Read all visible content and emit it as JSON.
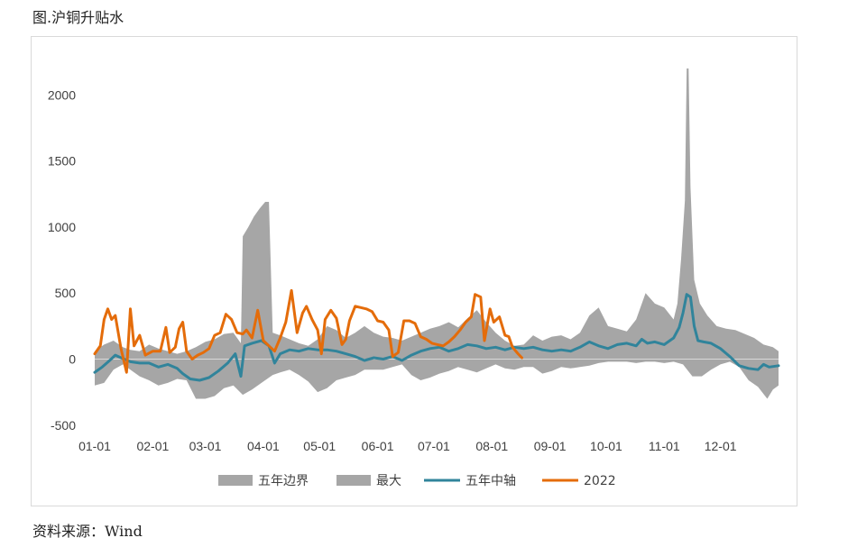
{
  "figure_title": "图.沪铜升贴水",
  "source_text": "资料来源：Wind",
  "chart_data": {
    "type": "area",
    "ylim": [
      -500,
      2200
    ],
    "y_ticks": [
      -500,
      0,
      500,
      1000,
      1500,
      2000
    ],
    "x_range": [
      1,
      366
    ],
    "x_ticks": [
      {
        "label": "01-01",
        "day": 1
      },
      {
        "label": "02-01",
        "day": 32
      },
      {
        "label": "03-01",
        "day": 60
      },
      {
        "label": "04-01",
        "day": 91
      },
      {
        "label": "05-01",
        "day": 121
      },
      {
        "label": "06-01",
        "day": 152
      },
      {
        "label": "07-01",
        "day": 182
      },
      {
        "label": "08-01",
        "day": 213
      },
      {
        "label": "09-01",
        "day": 244
      },
      {
        "label": "10-01",
        "day": 274
      },
      {
        "label": "11-01",
        "day": 305
      },
      {
        "label": "12-01",
        "day": 335
      }
    ],
    "legend": [
      "五年边界",
      "最大",
      "五年中轴",
      "2022"
    ],
    "colors": {
      "band": "#a6a6a6",
      "midline": "#31849b",
      "y2022": "#e46c0a"
    },
    "series": {
      "band_upper": [
        [
          1,
          60
        ],
        [
          6,
          110
        ],
        [
          11,
          140
        ],
        [
          16,
          90
        ],
        [
          20,
          70
        ],
        [
          25,
          60
        ],
        [
          30,
          110
        ],
        [
          35,
          80
        ],
        [
          40,
          60
        ],
        [
          45,
          40
        ],
        [
          50,
          60
        ],
        [
          55,
          90
        ],
        [
          60,
          130
        ],
        [
          65,
          150
        ],
        [
          70,
          190
        ],
        [
          75,
          200
        ],
        [
          79,
          120
        ],
        [
          80,
          930
        ],
        [
          83,
          1000
        ],
        [
          86,
          1080
        ],
        [
          89,
          1140
        ],
        [
          92,
          1190
        ],
        [
          94,
          1190
        ],
        [
          96,
          200
        ],
        [
          100,
          180
        ],
        [
          105,
          150
        ],
        [
          110,
          120
        ],
        [
          115,
          100
        ],
        [
          120,
          150
        ],
        [
          125,
          250
        ],
        [
          130,
          220
        ],
        [
          135,
          160
        ],
        [
          140,
          200
        ],
        [
          145,
          250
        ],
        [
          150,
          200
        ],
        [
          155,
          170
        ],
        [
          160,
          160
        ],
        [
          165,
          140
        ],
        [
          170,
          170
        ],
        [
          175,
          200
        ],
        [
          180,
          230
        ],
        [
          185,
          250
        ],
        [
          190,
          280
        ],
        [
          195,
          240
        ],
        [
          200,
          310
        ],
        [
          205,
          370
        ],
        [
          210,
          280
        ],
        [
          215,
          200
        ],
        [
          220,
          140
        ],
        [
          225,
          100
        ],
        [
          230,
          110
        ],
        [
          235,
          180
        ],
        [
          240,
          140
        ],
        [
          245,
          170
        ],
        [
          250,
          180
        ],
        [
          255,
          150
        ],
        [
          260,
          200
        ],
        [
          265,
          330
        ],
        [
          270,
          390
        ],
        [
          275,
          250
        ],
        [
          280,
          230
        ],
        [
          285,
          210
        ],
        [
          290,
          300
        ],
        [
          295,
          500
        ],
        [
          300,
          420
        ],
        [
          305,
          390
        ],
        [
          310,
          300
        ],
        [
          312,
          420
        ],
        [
          314,
          760
        ],
        [
          316,
          1200
        ],
        [
          317,
          2200
        ],
        [
          318,
          2200
        ],
        [
          319,
          1300
        ],
        [
          321,
          600
        ],
        [
          324,
          420
        ],
        [
          328,
          330
        ],
        [
          333,
          250
        ],
        [
          338,
          230
        ],
        [
          343,
          220
        ],
        [
          348,
          190
        ],
        [
          353,
          160
        ],
        [
          358,
          110
        ],
        [
          363,
          90
        ],
        [
          366,
          60
        ]
      ],
      "band_lower": [
        [
          1,
          -200
        ],
        [
          6,
          -180
        ],
        [
          11,
          -80
        ],
        [
          16,
          -40
        ],
        [
          20,
          -80
        ],
        [
          25,
          -130
        ],
        [
          30,
          -160
        ],
        [
          35,
          -200
        ],
        [
          40,
          -180
        ],
        [
          45,
          -150
        ],
        [
          50,
          -160
        ],
        [
          55,
          -300
        ],
        [
          60,
          -300
        ],
        [
          65,
          -280
        ],
        [
          70,
          -220
        ],
        [
          75,
          -200
        ],
        [
          80,
          -270
        ],
        [
          85,
          -230
        ],
        [
          90,
          -180
        ],
        [
          96,
          -120
        ],
        [
          100,
          -100
        ],
        [
          105,
          -80
        ],
        [
          110,
          -120
        ],
        [
          115,
          -170
        ],
        [
          120,
          -250
        ],
        [
          125,
          -220
        ],
        [
          130,
          -160
        ],
        [
          135,
          -140
        ],
        [
          140,
          -120
        ],
        [
          145,
          -80
        ],
        [
          150,
          -80
        ],
        [
          155,
          -80
        ],
        [
          160,
          -60
        ],
        [
          165,
          -40
        ],
        [
          170,
          -120
        ],
        [
          175,
          -160
        ],
        [
          180,
          -140
        ],
        [
          185,
          -110
        ],
        [
          190,
          -90
        ],
        [
          195,
          -60
        ],
        [
          200,
          -80
        ],
        [
          205,
          -100
        ],
        [
          210,
          -70
        ],
        [
          215,
          -40
        ],
        [
          220,
          -70
        ],
        [
          225,
          -80
        ],
        [
          230,
          -60
        ],
        [
          235,
          -60
        ],
        [
          240,
          -110
        ],
        [
          245,
          -90
        ],
        [
          250,
          -60
        ],
        [
          255,
          -70
        ],
        [
          260,
          -60
        ],
        [
          265,
          -50
        ],
        [
          270,
          -30
        ],
        [
          275,
          -20
        ],
        [
          280,
          -20
        ],
        [
          285,
          -20
        ],
        [
          290,
          -30
        ],
        [
          295,
          -20
        ],
        [
          300,
          -20
        ],
        [
          305,
          -30
        ],
        [
          310,
          -20
        ],
        [
          315,
          -40
        ],
        [
          320,
          -130
        ],
        [
          325,
          -130
        ],
        [
          330,
          -80
        ],
        [
          335,
          -40
        ],
        [
          340,
          -20
        ],
        [
          345,
          -60
        ],
        [
          350,
          -160
        ],
        [
          355,
          -210
        ],
        [
          360,
          -300
        ],
        [
          363,
          -230
        ],
        [
          366,
          -200
        ]
      ],
      "midline": [
        [
          1,
          -100
        ],
        [
          5,
          -60
        ],
        [
          9,
          -10
        ],
        [
          12,
          30
        ],
        [
          15,
          10
        ],
        [
          20,
          -20
        ],
        [
          25,
          -30
        ],
        [
          30,
          -30
        ],
        [
          35,
          -60
        ],
        [
          40,
          -40
        ],
        [
          45,
          -70
        ],
        [
          48,
          -110
        ],
        [
          52,
          -150
        ],
        [
          57,
          -160
        ],
        [
          62,
          -140
        ],
        [
          67,
          -90
        ],
        [
          72,
          -30
        ],
        [
          76,
          40
        ],
        [
          79,
          -130
        ],
        [
          81,
          100
        ],
        [
          85,
          120
        ],
        [
          90,
          140
        ],
        [
          94,
          100
        ],
        [
          97,
          -30
        ],
        [
          100,
          40
        ],
        [
          105,
          70
        ],
        [
          110,
          60
        ],
        [
          115,
          80
        ],
        [
          120,
          70
        ],
        [
          125,
          70
        ],
        [
          130,
          60
        ],
        [
          135,
          40
        ],
        [
          140,
          20
        ],
        [
          145,
          -10
        ],
        [
          150,
          10
        ],
        [
          155,
          0
        ],
        [
          160,
          20
        ],
        [
          165,
          -10
        ],
        [
          170,
          30
        ],
        [
          175,
          60
        ],
        [
          180,
          80
        ],
        [
          185,
          90
        ],
        [
          190,
          60
        ],
        [
          195,
          80
        ],
        [
          200,
          110
        ],
        [
          205,
          100
        ],
        [
          210,
          80
        ],
        [
          215,
          90
        ],
        [
          220,
          70
        ],
        [
          225,
          90
        ],
        [
          230,
          80
        ],
        [
          235,
          90
        ],
        [
          240,
          70
        ],
        [
          245,
          60
        ],
        [
          250,
          70
        ],
        [
          255,
          60
        ],
        [
          260,
          90
        ],
        [
          265,
          130
        ],
        [
          270,
          100
        ],
        [
          275,
          80
        ],
        [
          280,
          110
        ],
        [
          285,
          120
        ],
        [
          290,
          100
        ],
        [
          293,
          150
        ],
        [
          296,
          120
        ],
        [
          300,
          130
        ],
        [
          305,
          110
        ],
        [
          310,
          160
        ],
        [
          313,
          240
        ],
        [
          315,
          350
        ],
        [
          317,
          490
        ],
        [
          319,
          470
        ],
        [
          321,
          250
        ],
        [
          323,
          140
        ],
        [
          326,
          130
        ],
        [
          330,
          120
        ],
        [
          335,
          80
        ],
        [
          340,
          20
        ],
        [
          345,
          -50
        ],
        [
          350,
          -70
        ],
        [
          355,
          -80
        ],
        [
          358,
          -40
        ],
        [
          361,
          -60
        ],
        [
          366,
          -50
        ]
      ],
      "y2022": [
        [
          1,
          40
        ],
        [
          4,
          100
        ],
        [
          6,
          300
        ],
        [
          8,
          380
        ],
        [
          10,
          300
        ],
        [
          12,
          330
        ],
        [
          15,
          80
        ],
        [
          18,
          -100
        ],
        [
          20,
          380
        ],
        [
          22,
          100
        ],
        [
          25,
          180
        ],
        [
          28,
          30
        ],
        [
          32,
          60
        ],
        [
          36,
          60
        ],
        [
          39,
          240
        ],
        [
          41,
          50
        ],
        [
          44,
          90
        ],
        [
          46,
          230
        ],
        [
          48,
          280
        ],
        [
          50,
          60
        ],
        [
          53,
          0
        ],
        [
          56,
          30
        ],
        [
          59,
          50
        ],
        [
          62,
          80
        ],
        [
          65,
          180
        ],
        [
          68,
          200
        ],
        [
          71,
          340
        ],
        [
          74,
          300
        ],
        [
          77,
          200
        ],
        [
          80,
          190
        ],
        [
          82,
          220
        ],
        [
          85,
          160
        ],
        [
          88,
          370
        ],
        [
          91,
          140
        ],
        [
          94,
          100
        ],
        [
          97,
          60
        ],
        [
          100,
          160
        ],
        [
          103,
          280
        ],
        [
          106,
          520
        ],
        [
          109,
          200
        ],
        [
          112,
          350
        ],
        [
          114,
          400
        ],
        [
          117,
          300
        ],
        [
          120,
          220
        ],
        [
          122,
          40
        ],
        [
          124,
          300
        ],
        [
          127,
          370
        ],
        [
          130,
          310
        ],
        [
          133,
          110
        ],
        [
          135,
          150
        ],
        [
          137,
          290
        ],
        [
          140,
          400
        ],
        [
          143,
          390
        ],
        [
          146,
          380
        ],
        [
          149,
          360
        ],
        [
          152,
          290
        ],
        [
          155,
          280
        ],
        [
          158,
          220
        ],
        [
          160,
          20
        ],
        [
          163,
          50
        ],
        [
          166,
          290
        ],
        [
          169,
          290
        ],
        [
          172,
          270
        ],
        [
          175,
          170
        ],
        [
          178,
          150
        ],
        [
          181,
          120
        ],
        [
          184,
          110
        ],
        [
          187,
          100
        ],
        [
          190,
          130
        ],
        [
          193,
          170
        ],
        [
          196,
          220
        ],
        [
          199,
          280
        ],
        [
          202,
          320
        ],
        [
          204,
          490
        ],
        [
          207,
          470
        ],
        [
          209,
          140
        ],
        [
          212,
          380
        ],
        [
          214,
          280
        ],
        [
          217,
          320
        ],
        [
          220,
          180
        ],
        [
          222,
          170
        ],
        [
          224,
          90
        ],
        [
          227,
          40
        ],
        [
          229,
          10
        ]
      ]
    }
  }
}
